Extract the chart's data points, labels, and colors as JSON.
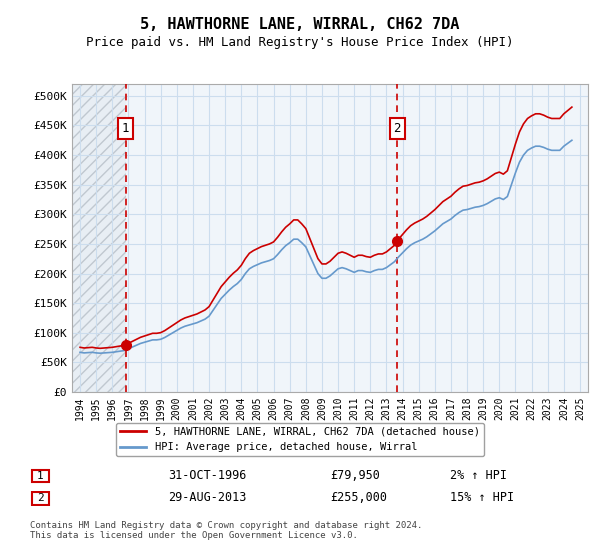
{
  "title": "5, HAWTHORNE LANE, WIRRAL, CH62 7DA",
  "subtitle": "Price paid vs. HM Land Registry's House Price Index (HPI)",
  "ylabel_ticks": [
    "£0",
    "£50K",
    "£100K",
    "£150K",
    "£200K",
    "£250K",
    "£300K",
    "£350K",
    "£400K",
    "£450K",
    "£500K"
  ],
  "ytick_values": [
    0,
    50000,
    100000,
    150000,
    200000,
    250000,
    300000,
    350000,
    400000,
    450000,
    500000
  ],
  "ylim": [
    0,
    520000
  ],
  "xlim_start": 1993.5,
  "xlim_end": 2025.5,
  "xticks": [
    1994,
    1995,
    1996,
    1997,
    1998,
    1999,
    2000,
    2001,
    2002,
    2003,
    2004,
    2005,
    2006,
    2007,
    2008,
    2009,
    2010,
    2011,
    2012,
    2013,
    2014,
    2015,
    2016,
    2017,
    2018,
    2019,
    2020,
    2021,
    2022,
    2023,
    2024,
    2025
  ],
  "hpi_color": "#6699cc",
  "price_color": "#cc0000",
  "marker_color": "#cc0000",
  "vline_color": "#cc0000",
  "annotation_box_color": "#cc0000",
  "grid_color": "#ccddee",
  "hatched_color": "#e8eef4",
  "background_chart": "#f0f5fa",
  "purchase1_year": 1996.833,
  "purchase1_price": 79950,
  "purchase2_year": 2013.666,
  "purchase2_price": 255000,
  "legend_label1": "5, HAWTHORNE LANE, WIRRAL, CH62 7DA (detached house)",
  "legend_label2": "HPI: Average price, detached house, Wirral",
  "annotation1_num": "1",
  "annotation2_num": "2",
  "table_row1": [
    "1",
    "31-OCT-1996",
    "£79,950",
    "2% ↑ HPI"
  ],
  "table_row2": [
    "2",
    "29-AUG-2013",
    "£255,000",
    "15% ↑ HPI"
  ],
  "footer": "Contains HM Land Registry data © Crown copyright and database right 2024.\nThis data is licensed under the Open Government Licence v3.0.",
  "hpi_data": {
    "years": [
      1994.0,
      1994.25,
      1994.5,
      1994.75,
      1995.0,
      1995.25,
      1995.5,
      1995.75,
      1996.0,
      1996.25,
      1996.5,
      1996.75,
      1997.0,
      1997.25,
      1997.5,
      1997.75,
      1998.0,
      1998.25,
      1998.5,
      1998.75,
      1999.0,
      1999.25,
      1999.5,
      1999.75,
      2000.0,
      2000.25,
      2000.5,
      2000.75,
      2001.0,
      2001.25,
      2001.5,
      2001.75,
      2002.0,
      2002.25,
      2002.5,
      2002.75,
      2003.0,
      2003.25,
      2003.5,
      2003.75,
      2004.0,
      2004.25,
      2004.5,
      2004.75,
      2005.0,
      2005.25,
      2005.5,
      2005.75,
      2006.0,
      2006.25,
      2006.5,
      2006.75,
      2007.0,
      2007.25,
      2007.5,
      2007.75,
      2008.0,
      2008.25,
      2008.5,
      2008.75,
      2009.0,
      2009.25,
      2009.5,
      2009.75,
      2010.0,
      2010.25,
      2010.5,
      2010.75,
      2011.0,
      2011.25,
      2011.5,
      2011.75,
      2012.0,
      2012.25,
      2012.5,
      2012.75,
      2013.0,
      2013.25,
      2013.5,
      2013.75,
      2014.0,
      2014.25,
      2014.5,
      2014.75,
      2015.0,
      2015.25,
      2015.5,
      2015.75,
      2016.0,
      2016.25,
      2016.5,
      2016.75,
      2017.0,
      2017.25,
      2017.5,
      2017.75,
      2018.0,
      2018.25,
      2018.5,
      2018.75,
      2019.0,
      2019.25,
      2019.5,
      2019.75,
      2020.0,
      2020.25,
      2020.5,
      2020.75,
      2021.0,
      2021.25,
      2021.5,
      2021.75,
      2022.0,
      2022.25,
      2022.5,
      2022.75,
      2023.0,
      2023.25,
      2023.5,
      2023.75,
      2024.0,
      2024.25,
      2024.5
    ],
    "values": [
      67000,
      66000,
      66500,
      67000,
      66000,
      65500,
      66000,
      66500,
      67000,
      68000,
      69000,
      70000,
      73000,
      76000,
      79000,
      82000,
      84000,
      86000,
      88000,
      88000,
      89000,
      92000,
      96000,
      100000,
      104000,
      108000,
      111000,
      113000,
      115000,
      117000,
      120000,
      123000,
      128000,
      138000,
      148000,
      158000,
      165000,
      172000,
      178000,
      183000,
      190000,
      200000,
      208000,
      212000,
      215000,
      218000,
      220000,
      222000,
      225000,
      232000,
      240000,
      247000,
      252000,
      258000,
      258000,
      252000,
      245000,
      230000,
      215000,
      200000,
      192000,
      192000,
      196000,
      202000,
      208000,
      210000,
      208000,
      205000,
      202000,
      205000,
      205000,
      203000,
      202000,
      205000,
      207000,
      207000,
      210000,
      215000,
      220000,
      228000,
      235000,
      242000,
      248000,
      252000,
      255000,
      258000,
      262000,
      267000,
      272000,
      278000,
      284000,
      288000,
      292000,
      298000,
      303000,
      307000,
      308000,
      310000,
      312000,
      313000,
      315000,
      318000,
      322000,
      326000,
      328000,
      325000,
      330000,
      350000,
      370000,
      388000,
      400000,
      408000,
      412000,
      415000,
      415000,
      413000,
      410000,
      408000,
      408000,
      408000,
      415000,
      420000,
      425000
    ]
  },
  "price_data": {
    "years": [
      1994.0,
      1996.833,
      2013.666
    ],
    "values": [
      67000,
      79950,
      255000
    ]
  }
}
